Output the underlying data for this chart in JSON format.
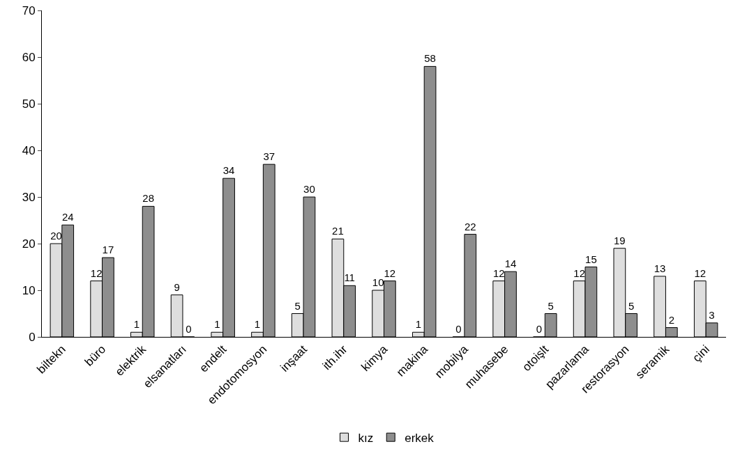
{
  "chart_data": {
    "type": "bar",
    "categories": [
      "biltekn",
      "büro",
      "elektrik",
      "elsanatları",
      "endelt",
      "endotomosyon",
      "inşaat",
      "ith.ihr",
      "kimya",
      "makina",
      "mobilya",
      "muhasebe",
      "otoişlt",
      "pazarlama",
      "restorasyon",
      "seramik",
      "çini"
    ],
    "series": [
      {
        "name": "kız",
        "color": "#dedede",
        "values": [
          20,
          12,
          1,
          9,
          1,
          1,
          5,
          21,
          10,
          1,
          0,
          12,
          0,
          12,
          19,
          13,
          12
        ]
      },
      {
        "name": "erkek",
        "color": "#8e8e8e",
        "values": [
          24,
          17,
          28,
          0,
          34,
          37,
          30,
          11,
          12,
          58,
          22,
          14,
          5,
          15,
          5,
          2,
          3
        ]
      }
    ],
    "ylim": [
      0,
      70
    ],
    "yticks": [
      0,
      10,
      20,
      30,
      40,
      50,
      60,
      70
    ],
    "grid": false,
    "legend": "bottom",
    "data_labels": true
  }
}
